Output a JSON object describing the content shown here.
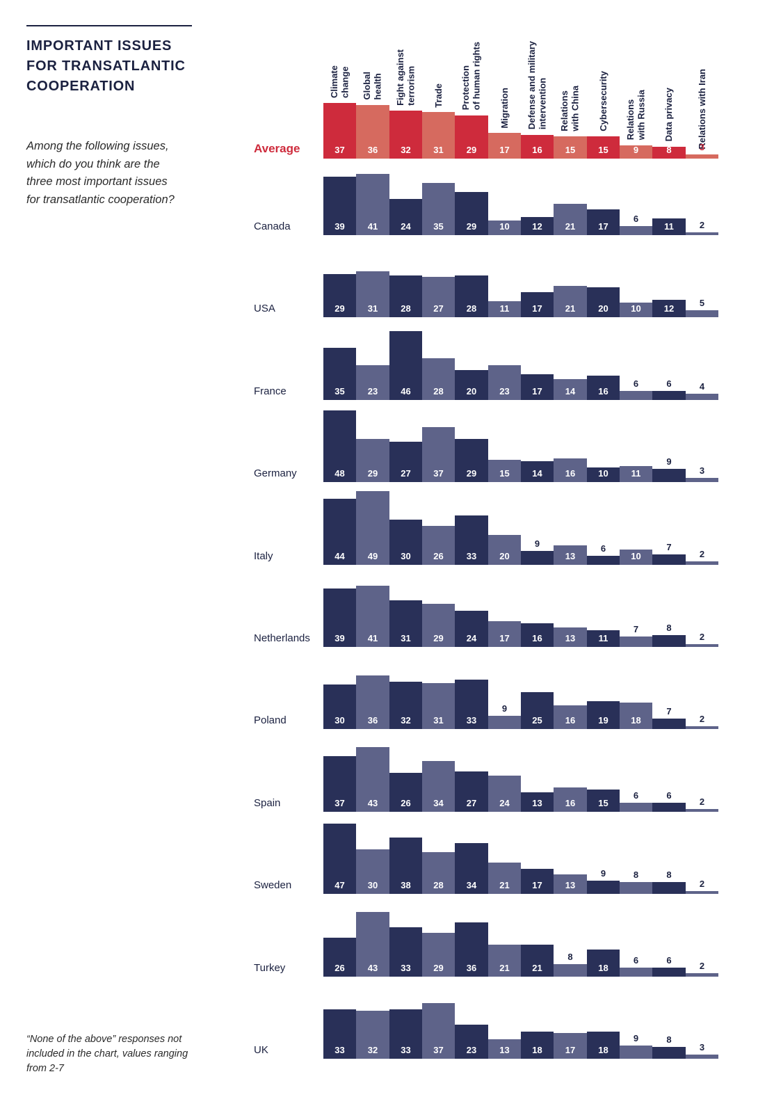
{
  "title": "IMPORTANT ISSUES\nFOR TRANSATLANTIC\nCOOPERATION",
  "question": "Among the following issues,\nwhich do you think are the\nthree most important issues\nfor transatlantic cooperation?",
  "footnote": "“None of the above” responses not\nincluded in the chart, values ranging\nfrom 2-7",
  "colors": {
    "bar_navy_dark": "#293058",
    "bar_navy_light": "#5e6389",
    "bar_red_dark": "#ce2b3c",
    "bar_red_light": "#d66a5f",
    "label_navy": "#1b2140",
    "value_inside": "#ffffff"
  },
  "chart_data": {
    "type": "bar",
    "unit": "percent",
    "title": "Important issues for transatlantic cooperation",
    "legend_position": "none",
    "grid": false,
    "categories": [
      "Climate\nchange",
      "Global\nhealth",
      "Fight against\nterrorism",
      "Trade",
      "Protection\nof human rights",
      "Migration",
      "Defense and military\nintervention",
      "Relations\nwith China",
      "Cybersecurity",
      "Relations\nwith Russia",
      "Data privacy",
      "Relations with Iran"
    ],
    "series": [
      {
        "name": "Average",
        "emphasis": "red",
        "values": [
          37,
          36,
          32,
          31,
          29,
          17,
          16,
          15,
          15,
          9,
          8,
          3
        ]
      },
      {
        "name": "Canada",
        "values": [
          39,
          41,
          24,
          35,
          29,
          10,
          12,
          21,
          17,
          6,
          11,
          2
        ]
      },
      {
        "name": "USA",
        "values": [
          29,
          31,
          28,
          27,
          28,
          11,
          17,
          21,
          20,
          10,
          12,
          5
        ]
      },
      {
        "name": "France",
        "values": [
          35,
          23,
          46,
          28,
          20,
          23,
          17,
          14,
          16,
          6,
          6,
          4
        ]
      },
      {
        "name": "Germany",
        "values": [
          48,
          29,
          27,
          37,
          29,
          15,
          14,
          16,
          10,
          11,
          9,
          3
        ]
      },
      {
        "name": "Italy",
        "values": [
          44,
          49,
          30,
          26,
          33,
          20,
          9,
          13,
          6,
          10,
          7,
          2
        ]
      },
      {
        "name": "Netherlands",
        "values": [
          39,
          41,
          31,
          29,
          24,
          17,
          16,
          13,
          11,
          7,
          8,
          2
        ]
      },
      {
        "name": "Poland",
        "values": [
          30,
          36,
          32,
          31,
          33,
          9,
          25,
          16,
          19,
          18,
          7,
          2
        ]
      },
      {
        "name": "Spain",
        "values": [
          37,
          43,
          26,
          34,
          27,
          24,
          13,
          16,
          15,
          6,
          6,
          2
        ]
      },
      {
        "name": "Sweden",
        "values": [
          47,
          30,
          38,
          28,
          34,
          21,
          17,
          13,
          9,
          8,
          8,
          2
        ]
      },
      {
        "name": "Turkey",
        "values": [
          26,
          43,
          33,
          29,
          36,
          21,
          21,
          8,
          18,
          6,
          6,
          2
        ]
      },
      {
        "name": "UK",
        "values": [
          33,
          32,
          33,
          37,
          23,
          13,
          18,
          17,
          18,
          9,
          8,
          3
        ]
      }
    ]
  }
}
